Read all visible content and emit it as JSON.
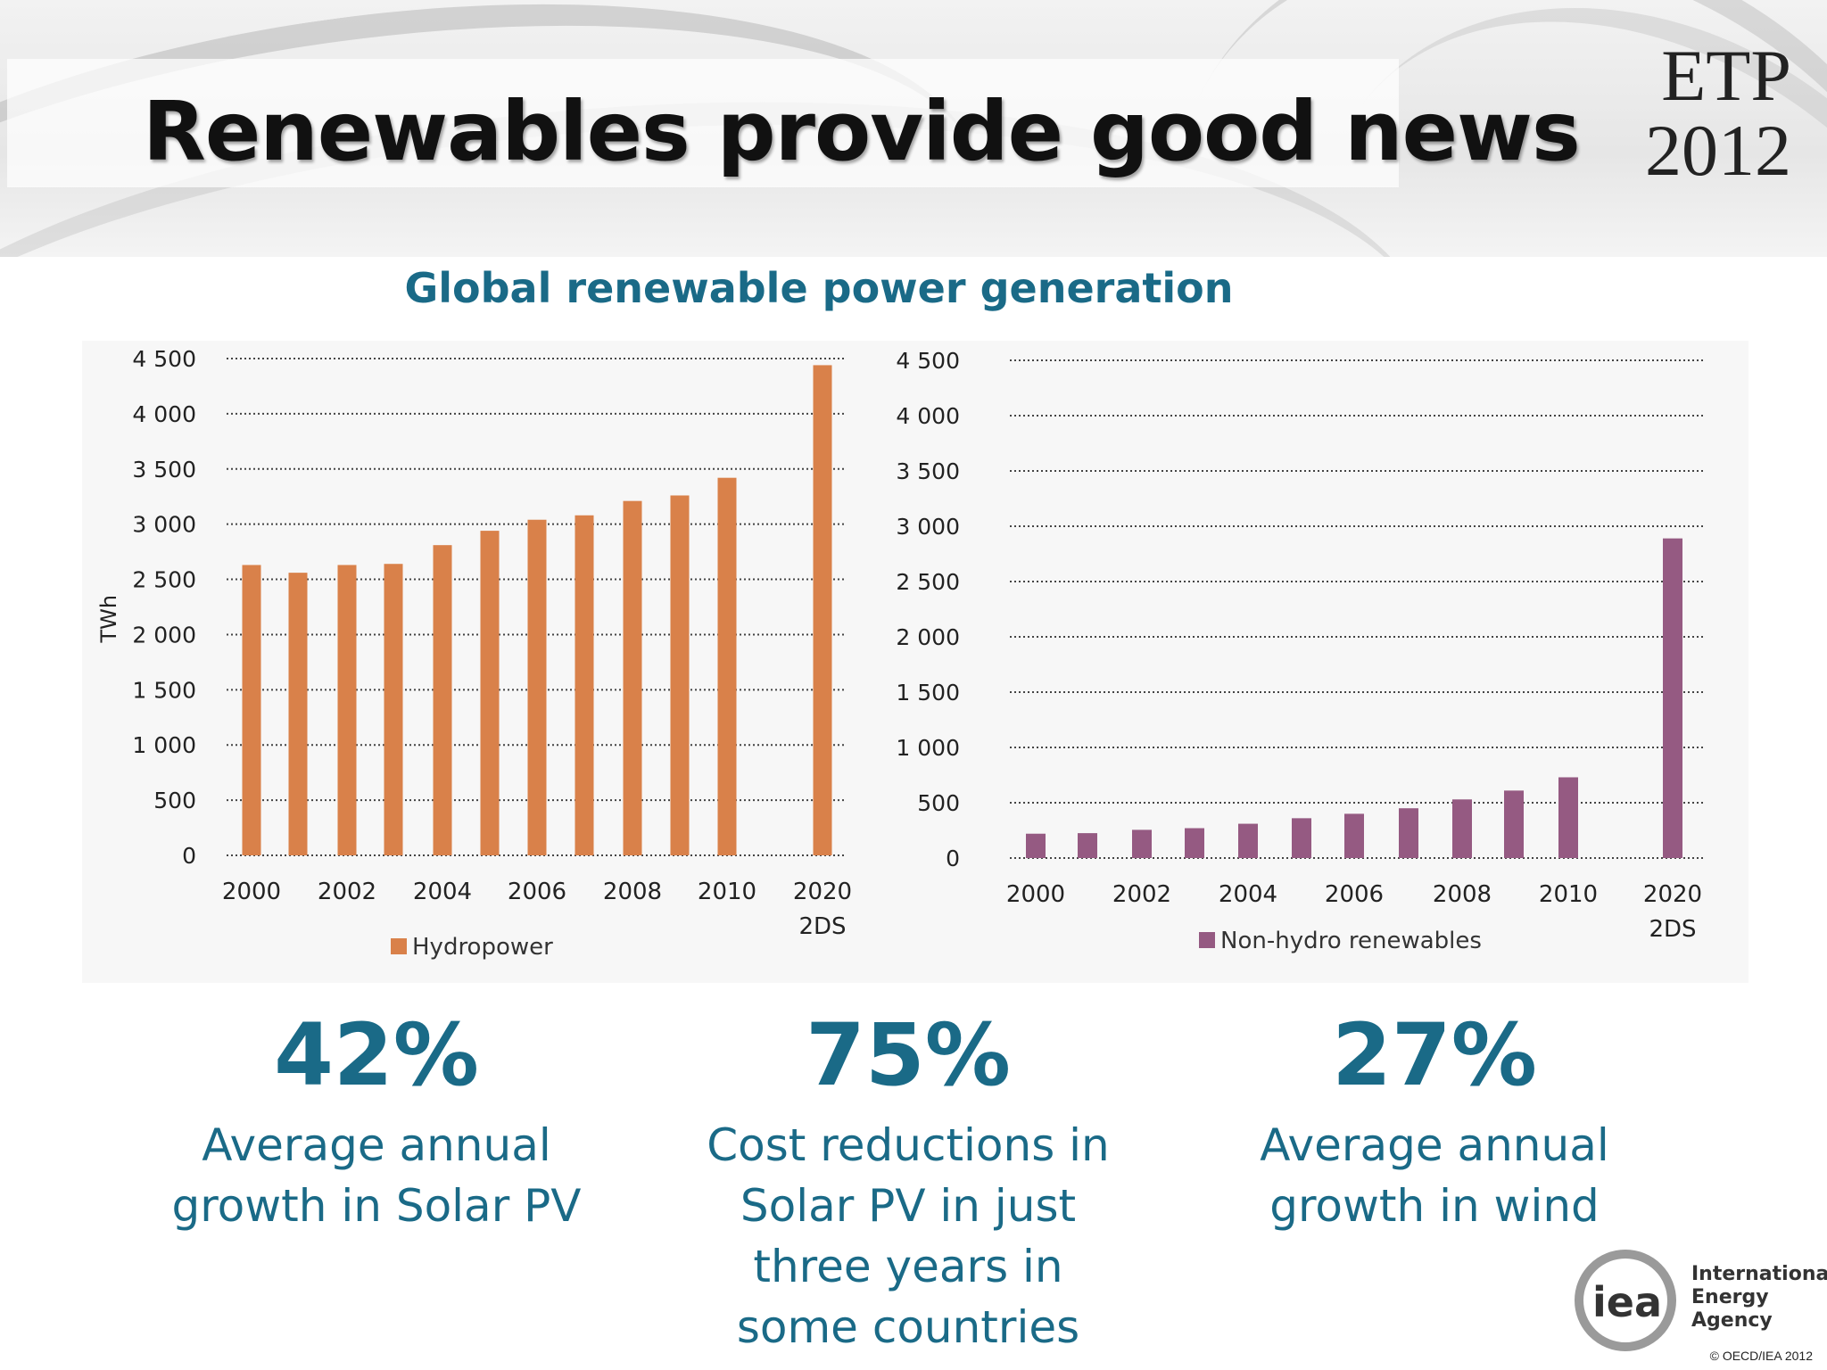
{
  "header": {
    "title": "Renewables provide good news",
    "badge_line1": "ETP",
    "badge_line2": "2012"
  },
  "chart_heading": "Global renewable power generation",
  "chart_data": [
    {
      "type": "bar",
      "ylabel": "TWh",
      "ylim": [
        0,
        4500
      ],
      "grid": true,
      "legend_position": "bottom-center",
      "y_ticks": [
        "4 500",
        "4 000",
        "3 500",
        "3 000",
        "2 500",
        "2 000",
        "1 500",
        "1 000",
        "500",
        "0"
      ],
      "x_tick_labels": [
        "2000",
        "2002",
        "2004",
        "2006",
        "2008",
        "2010",
        "2020"
      ],
      "x_tick_sublabel": "2DS",
      "categories": [
        "2000",
        "2001",
        "2002",
        "2003",
        "2004",
        "2005",
        "2006",
        "2007",
        "2008",
        "2009",
        "2010",
        "2020 2DS"
      ],
      "series": [
        {
          "name": "Hydropower",
          "color": "#d9814a",
          "values": [
            2630,
            2560,
            2630,
            2640,
            2810,
            2940,
            3040,
            3080,
            3210,
            3260,
            3420,
            4440
          ]
        }
      ]
    },
    {
      "type": "bar",
      "ylabel": "",
      "ylim": [
        0,
        4500
      ],
      "grid": true,
      "legend_position": "bottom-center",
      "y_ticks": [
        "4 500",
        "4 000",
        "3 500",
        "3 000",
        "2 500",
        "2 000",
        "1 500",
        "1 000",
        "500",
        "0"
      ],
      "x_tick_labels": [
        "2000",
        "2002",
        "2004",
        "2006",
        "2008",
        "2010",
        "2020"
      ],
      "x_tick_sublabel": "2DS",
      "categories": [
        "2000",
        "2001",
        "2002",
        "2003",
        "2004",
        "2005",
        "2006",
        "2007",
        "2008",
        "2009",
        "2010",
        "2020 2DS"
      ],
      "series": [
        {
          "name": "Non-hydro renewables",
          "color": "#955a82",
          "values": [
            220,
            225,
            255,
            270,
            310,
            360,
            400,
            450,
            530,
            610,
            730,
            2890
          ]
        }
      ]
    }
  ],
  "stats": [
    {
      "value": "42%",
      "line1": "Average annual",
      "line2": "growth in Solar PV"
    },
    {
      "value": "75%",
      "line1": "Cost reductions in",
      "line2": "Solar PV in just",
      "line3": "three years in",
      "line4": "some countries"
    },
    {
      "value": "27%",
      "line1": "Average annual",
      "line2": "growth in wind"
    }
  ],
  "footer": {
    "logo_text": "iea",
    "agency_line1": "International",
    "agency_line2": "Energy Agency",
    "copyright": "© OECD/IEA 2012"
  },
  "colors": {
    "accent": "#1a6a87",
    "hydro": "#d9814a",
    "nonhydro": "#955a82"
  }
}
